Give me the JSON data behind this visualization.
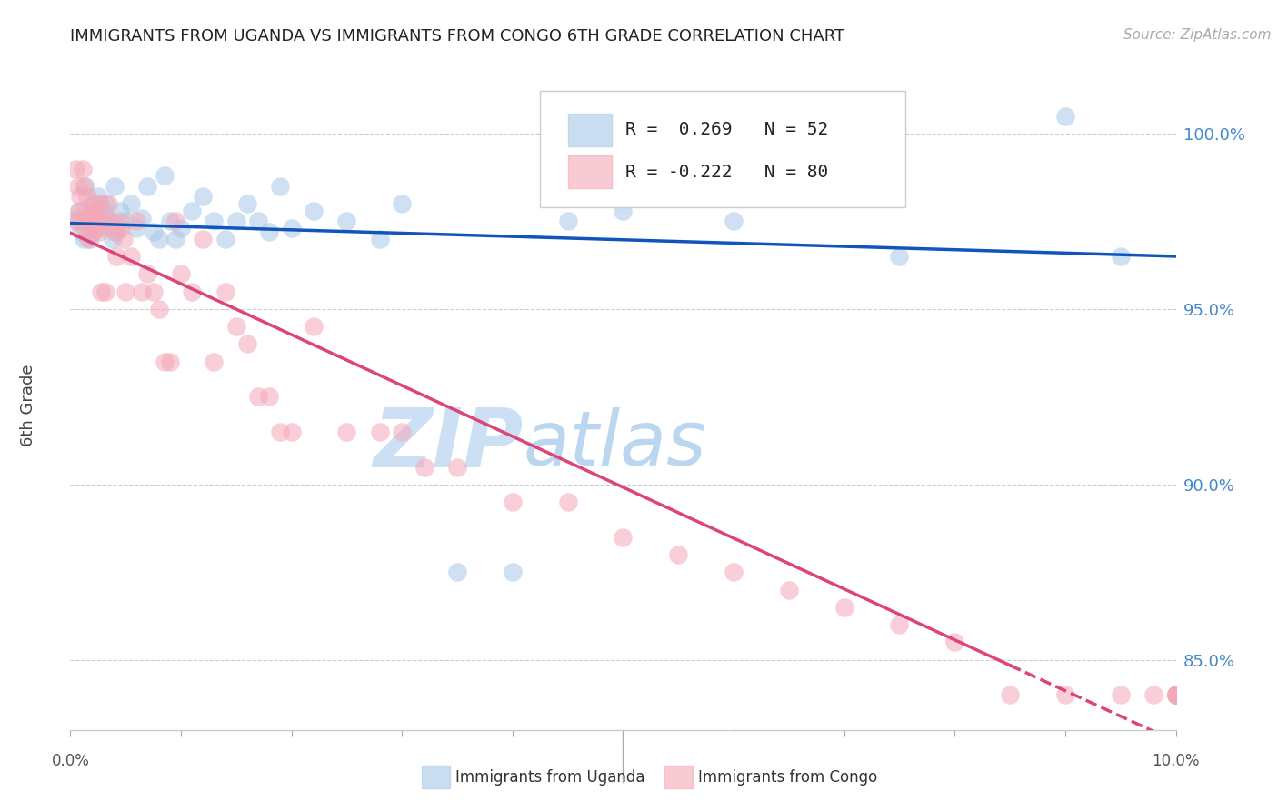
{
  "title": "IMMIGRANTS FROM UGANDA VS IMMIGRANTS FROM CONGO 6TH GRADE CORRELATION CHART",
  "source": "Source: ZipAtlas.com",
  "ylabel": "6th Grade",
  "right_yticks": [
    85.0,
    90.0,
    95.0,
    100.0
  ],
  "xlim": [
    0.0,
    10.0
  ],
  "ylim": [
    83.0,
    101.5
  ],
  "uganda_color": "#a8c8e8",
  "congo_color": "#f4a8b8",
  "line_blue_color": "#1155bb",
  "line_pink_color": "#dd4477",
  "watermark_zip_color": "#cce0f5",
  "watermark_atlas_color": "#b0d0ee",
  "legend_R_uganda": "0.269",
  "legend_N_uganda": "52",
  "legend_R_congo": "-0.222",
  "legend_N_congo": "80",
  "uganda_x": [
    0.05,
    0.08,
    0.1,
    0.12,
    0.14,
    0.16,
    0.18,
    0.2,
    0.22,
    0.25,
    0.28,
    0.3,
    0.32,
    0.35,
    0.38,
    0.4,
    0.42,
    0.45,
    0.5,
    0.55,
    0.6,
    0.65,
    0.7,
    0.75,
    0.8,
    0.85,
    0.9,
    0.95,
    1.0,
    1.1,
    1.2,
    1.3,
    1.4,
    1.5,
    1.6,
    1.7,
    1.8,
    1.9,
    2.0,
    2.2,
    2.5,
    2.8,
    3.0,
    3.5,
    4.0,
    4.5,
    5.0,
    6.0,
    7.0,
    7.5,
    9.0,
    9.5
  ],
  "uganda_y": [
    97.5,
    97.8,
    97.2,
    97.0,
    98.5,
    97.5,
    97.0,
    98.0,
    97.5,
    98.2,
    97.3,
    97.8,
    98.0,
    97.5,
    97.0,
    98.5,
    97.2,
    97.8,
    97.5,
    98.0,
    97.3,
    97.6,
    98.5,
    97.2,
    97.0,
    98.8,
    97.5,
    97.0,
    97.3,
    97.8,
    98.2,
    97.5,
    97.0,
    97.5,
    98.0,
    97.5,
    97.2,
    98.5,
    97.3,
    97.8,
    97.5,
    97.0,
    98.0,
    87.5,
    87.5,
    97.5,
    97.8,
    97.5,
    99.2,
    96.5,
    100.5,
    96.5
  ],
  "congo_x": [
    0.05,
    0.06,
    0.07,
    0.08,
    0.09,
    0.1,
    0.11,
    0.12,
    0.13,
    0.14,
    0.15,
    0.16,
    0.17,
    0.18,
    0.19,
    0.2,
    0.21,
    0.22,
    0.23,
    0.24,
    0.25,
    0.26,
    0.27,
    0.28,
    0.3,
    0.32,
    0.34,
    0.36,
    0.38,
    0.4,
    0.42,
    0.44,
    0.46,
    0.48,
    0.5,
    0.55,
    0.6,
    0.65,
    0.7,
    0.75,
    0.8,
    0.85,
    0.9,
    0.95,
    1.0,
    1.1,
    1.2,
    1.3,
    1.4,
    1.5,
    1.6,
    1.7,
    1.8,
    1.9,
    2.0,
    2.2,
    2.5,
    2.8,
    3.0,
    3.2,
    3.5,
    4.0,
    4.5,
    5.0,
    5.5,
    6.0,
    6.5,
    7.0,
    7.5,
    8.0,
    8.5,
    9.0,
    9.5,
    9.8,
    10.0,
    10.0,
    10.0,
    10.0,
    10.0,
    10.0
  ],
  "congo_y": [
    99.0,
    97.5,
    98.5,
    97.8,
    98.2,
    97.5,
    99.0,
    98.5,
    97.3,
    97.8,
    98.2,
    97.0,
    97.5,
    97.3,
    97.8,
    97.2,
    97.5,
    98.0,
    97.3,
    97.8,
    97.5,
    97.2,
    98.0,
    95.5,
    97.5,
    95.5,
    98.0,
    97.5,
    97.3,
    97.2,
    96.5,
    97.5,
    97.3,
    97.0,
    95.5,
    96.5,
    97.5,
    95.5,
    96.0,
    95.5,
    95.0,
    93.5,
    93.5,
    97.5,
    96.0,
    95.5,
    97.0,
    93.5,
    95.5,
    94.5,
    94.0,
    92.5,
    92.5,
    91.5,
    91.5,
    94.5,
    91.5,
    91.5,
    91.5,
    90.5,
    90.5,
    89.5,
    89.5,
    88.5,
    88.0,
    87.5,
    87.0,
    86.5,
    86.0,
    85.5,
    84.0,
    84.0,
    84.0,
    84.0,
    84.0,
    84.0,
    84.0,
    84.0,
    84.0,
    84.0
  ]
}
